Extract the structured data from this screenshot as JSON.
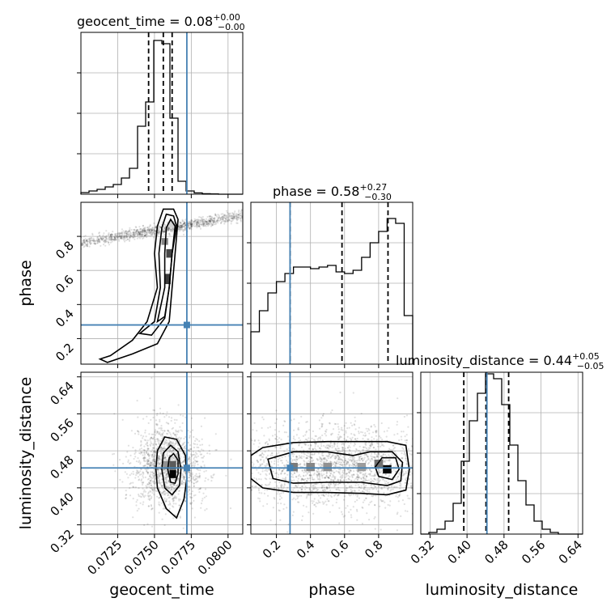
{
  "colors": {
    "truth": "#4682b4",
    "line": "#000000",
    "grid": "#b0b0b0"
  },
  "titles": {
    "geocent_time": {
      "main": "geocent_time = 0.08",
      "sup": "+0.00",
      "sub": "−0.00"
    },
    "phase": {
      "main": "phase = 0.58",
      "sup": "+0.27",
      "sub": "−0.30"
    },
    "luminosity_distance": {
      "main": "luminosity_distance = 0.44",
      "sup": "+0.05",
      "sub": "−0.05"
    }
  },
  "axis_labels": {
    "x": [
      "geocent_time",
      "phase",
      "luminosity_distance"
    ],
    "y": [
      "",
      "phase",
      "luminosity_distance"
    ]
  },
  "chart_data": {
    "type": "corner",
    "parameters": [
      "geocent_time",
      "phase",
      "luminosity_distance"
    ],
    "ranges": {
      "geocent_time": [
        0.07,
        0.081
      ],
      "phase": [
        0.05,
        1.0
      ],
      "luminosity_distance": [
        0.3,
        0.65
      ]
    },
    "ticks": {
      "geocent_time": {
        "values": [
          0.0725,
          0.075,
          0.0775,
          0.08
        ],
        "labels": [
          "0.0725",
          "0.0750",
          "0.0775",
          "0.0800"
        ]
      },
      "phase": {
        "values": [
          0.2,
          0.4,
          0.6,
          0.8
        ],
        "labels": [
          "0.2",
          "0.4",
          "0.6",
          "0.8"
        ]
      },
      "luminosity_distance": {
        "values": [
          0.32,
          0.4,
          0.48,
          0.56,
          0.64
        ],
        "labels": [
          "0.32",
          "0.40",
          "0.48",
          "0.56",
          "0.64"
        ]
      }
    },
    "truths": {
      "geocent_time": 0.0772,
      "phase": 0.28,
      "luminosity_distance": 0.443
    },
    "quantiles": {
      "geocent_time": [
        0.0746,
        0.0756,
        0.0762
      ],
      "phase": [
        0.28,
        0.585,
        0.855
      ],
      "luminosity_distance": [
        0.393,
        0.441,
        0.49
      ]
    },
    "histograms": {
      "geocent_time": {
        "edges": [
          0.07,
          0.07055,
          0.0711,
          0.07165,
          0.0722,
          0.07275,
          0.0733,
          0.07385,
          0.0744,
          0.07495,
          0.0755,
          0.07605,
          0.0766,
          0.07715,
          0.0777,
          0.07825,
          0.0788,
          0.07935,
          0.0799,
          0.08045,
          0.081
        ],
        "counts": [
          0.01,
          0.02,
          0.03,
          0.045,
          0.06,
          0.1,
          0.16,
          0.42,
          0.57,
          0.95,
          0.93,
          0.47,
          0.08,
          0.02,
          0.008,
          0.003,
          0.0015,
          0,
          0,
          0
        ]
      },
      "phase": {
        "edges": [
          0.0,
          0.05,
          0.1,
          0.15,
          0.2,
          0.25,
          0.3,
          0.35,
          0.4,
          0.45,
          0.5,
          0.55,
          0.6,
          0.65,
          0.7,
          0.75,
          0.8,
          0.85,
          0.9,
          0.95,
          1.0
        ],
        "counts": [
          0.08,
          0.2,
          0.33,
          0.44,
          0.51,
          0.56,
          0.6,
          0.6,
          0.59,
          0.6,
          0.61,
          0.57,
          0.56,
          0.58,
          0.66,
          0.75,
          0.82,
          0.9,
          0.87,
          0.3
        ]
      },
      "luminosity_distance": {
        "edges": [
          0.3,
          0.3175,
          0.335,
          0.3525,
          0.37,
          0.3875,
          0.405,
          0.4225,
          0.44,
          0.4575,
          0.475,
          0.4925,
          0.51,
          0.5275,
          0.545,
          0.5625,
          0.58,
          0.5975,
          0.615,
          0.6325,
          0.65
        ],
        "counts": [
          0.0,
          0.01,
          0.03,
          0.08,
          0.19,
          0.45,
          0.7,
          0.87,
          0.99,
          0.96,
          0.8,
          0.55,
          0.33,
          0.18,
          0.08,
          0.03,
          0.01,
          0.0,
          0.0,
          0.0
        ]
      }
    },
    "joint": [
      {
        "x": "geocent_time",
        "y": "phase",
        "samples": {
          "n": 1800,
          "cx": 0.076,
          "sx": 0.0011,
          "cy": 0.85,
          "sy": 0.09,
          "shear": 0.006
        },
        "cells": [
          {
            "x": 0.0762,
            "y": 0.87,
            "w": 0.00045,
            "h": 0.04,
            "level": 0.05
          },
          {
            "x": 0.0757,
            "y": 0.77,
            "w": 0.00045,
            "h": 0.04,
            "level": 0.4
          },
          {
            "x": 0.076,
            "y": 0.7,
            "w": 0.0004,
            "h": 0.05,
            "level": 0.7
          },
          {
            "x": 0.0759,
            "y": 0.55,
            "w": 0.0004,
            "h": 0.06,
            "level": 0.75
          }
        ],
        "contours": [
          [
            [
              0.0713,
              0.08
            ],
            [
              0.072,
              0.1
            ],
            [
              0.0735,
              0.19
            ],
            [
              0.0745,
              0.3
            ],
            [
              0.0752,
              0.5
            ],
            [
              0.075,
              0.7
            ],
            [
              0.0752,
              0.86
            ],
            [
              0.0756,
              0.96
            ],
            [
              0.0763,
              0.96
            ],
            [
              0.0766,
              0.9
            ],
            [
              0.0764,
              0.7
            ],
            [
              0.0762,
              0.5
            ],
            [
              0.076,
              0.3
            ],
            [
              0.0752,
              0.17
            ],
            [
              0.0735,
              0.11
            ],
            [
              0.0718,
              0.06
            ],
            [
              0.0713,
              0.08
            ]
          ],
          [
            [
              0.074,
              0.23
            ],
            [
              0.075,
              0.3
            ],
            [
              0.0754,
              0.5
            ],
            [
              0.0753,
              0.7
            ],
            [
              0.0755,
              0.85
            ],
            [
              0.0758,
              0.93
            ],
            [
              0.0763,
              0.92
            ],
            [
              0.0765,
              0.86
            ],
            [
              0.0762,
              0.7
            ],
            [
              0.076,
              0.5
            ],
            [
              0.0757,
              0.32
            ],
            [
              0.0748,
              0.22
            ],
            [
              0.074,
              0.23
            ]
          ],
          [
            [
              0.0752,
              0.3
            ],
            [
              0.0757,
              0.5
            ],
            [
              0.0757,
              0.7
            ],
            [
              0.0758,
              0.85
            ],
            [
              0.0761,
              0.9
            ],
            [
              0.0764,
              0.86
            ],
            [
              0.0762,
              0.7
            ],
            [
              0.076,
              0.5
            ],
            [
              0.0757,
              0.33
            ],
            [
              0.0752,
              0.3
            ]
          ]
        ]
      },
      {
        "x": "geocent_time",
        "y": "luminosity_distance",
        "samples": {
          "n": 1500,
          "cx": 0.0759,
          "sx": 0.0012,
          "cy": 0.445,
          "sy": 0.045,
          "shear": 0
        },
        "cells": [
          {
            "x": 0.07625,
            "y": 0.43,
            "w": 0.00045,
            "h": 0.018,
            "level": 1.0
          },
          {
            "x": 0.07625,
            "y": 0.449,
            "w": 0.00045,
            "h": 0.018,
            "level": 0.6
          },
          {
            "x": 0.0758,
            "y": 0.449,
            "w": 0.00045,
            "h": 0.018,
            "level": 0.35
          }
        ],
        "contours": [
          [
            [
              0.0751,
              0.44
            ],
            [
              0.0752,
              0.48
            ],
            [
              0.0757,
              0.51
            ],
            [
              0.0765,
              0.505
            ],
            [
              0.0771,
              0.47
            ],
            [
              0.0772,
              0.42
            ],
            [
              0.077,
              0.375
            ],
            [
              0.0765,
              0.335
            ],
            [
              0.0758,
              0.355
            ],
            [
              0.0752,
              0.4
            ],
            [
              0.0751,
              0.44
            ]
          ],
          [
            [
              0.0755,
              0.44
            ],
            [
              0.0756,
              0.475
            ],
            [
              0.0761,
              0.492
            ],
            [
              0.0766,
              0.478
            ],
            [
              0.0768,
              0.44
            ],
            [
              0.0767,
              0.405
            ],
            [
              0.0762,
              0.385
            ],
            [
              0.0757,
              0.4
            ],
            [
              0.0755,
              0.44
            ]
          ],
          [
            [
              0.0759,
              0.44
            ],
            [
              0.076,
              0.465
            ],
            [
              0.0763,
              0.474
            ],
            [
              0.0766,
              0.46
            ],
            [
              0.0766,
              0.43
            ],
            [
              0.0764,
              0.41
            ],
            [
              0.0761,
              0.412
            ],
            [
              0.0759,
              0.44
            ]
          ]
        ]
      },
      {
        "x": "phase",
        "y": "luminosity_distance",
        "samples": {
          "n": 2200,
          "cx": 0.55,
          "sx": 0.3,
          "cy": 0.445,
          "sy": 0.045,
          "shear": 0
        },
        "cells": [
          {
            "x": 0.85,
            "y": 0.44,
            "w": 0.05,
            "h": 0.018,
            "level": 1.0
          },
          {
            "x": 0.8,
            "y": 0.452,
            "w": 0.05,
            "h": 0.018,
            "level": 0.5
          },
          {
            "x": 0.3,
            "y": 0.445,
            "w": 0.05,
            "h": 0.018,
            "level": 0.45
          },
          {
            "x": 0.4,
            "y": 0.445,
            "w": 0.05,
            "h": 0.018,
            "level": 0.4
          },
          {
            "x": 0.5,
            "y": 0.445,
            "w": 0.05,
            "h": 0.018,
            "level": 0.35
          },
          {
            "x": 0.7,
            "y": 0.445,
            "w": 0.05,
            "h": 0.018,
            "level": 0.3
          }
        ],
        "contours": [
          [
            [
              0.05,
              0.47
            ],
            [
              0.12,
              0.487
            ],
            [
              0.3,
              0.498
            ],
            [
              0.5,
              0.5
            ],
            [
              0.7,
              0.5
            ],
            [
              0.85,
              0.5
            ],
            [
              0.96,
              0.492
            ],
            [
              0.98,
              0.44
            ],
            [
              0.96,
              0.395
            ],
            [
              0.85,
              0.385
            ],
            [
              0.7,
              0.388
            ],
            [
              0.5,
              0.39
            ],
            [
              0.3,
              0.39
            ],
            [
              0.12,
              0.4
            ],
            [
              0.05,
              0.42
            ],
            [
              0.05,
              0.47
            ]
          ],
          [
            [
              0.15,
              0.462
            ],
            [
              0.3,
              0.478
            ],
            [
              0.5,
              0.478
            ],
            [
              0.65,
              0.47
            ],
            [
              0.75,
              0.478
            ],
            [
              0.88,
              0.478
            ],
            [
              0.94,
              0.455
            ],
            [
              0.93,
              0.415
            ],
            [
              0.85,
              0.405
            ],
            [
              0.7,
              0.412
            ],
            [
              0.5,
              0.412
            ],
            [
              0.3,
              0.41
            ],
            [
              0.18,
              0.42
            ],
            [
              0.15,
              0.462
            ]
          ],
          [
            [
              0.78,
              0.445
            ],
            [
              0.82,
              0.465
            ],
            [
              0.9,
              0.465
            ],
            [
              0.92,
              0.44
            ],
            [
              0.88,
              0.418
            ],
            [
              0.8,
              0.425
            ],
            [
              0.78,
              0.445
            ]
          ]
        ]
      }
    ]
  }
}
